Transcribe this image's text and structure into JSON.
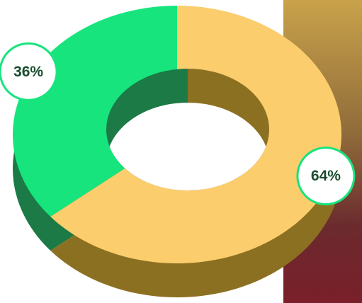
{
  "chart_data": {
    "type": "donut",
    "values": [
      36,
      64
    ],
    "value_labels": [
      "36%",
      "64%"
    ],
    "colors": [
      "#17e47d",
      "#fbcd6c"
    ],
    "side_colors": [
      "#1b7a45",
      "#8c7022"
    ]
  }
}
